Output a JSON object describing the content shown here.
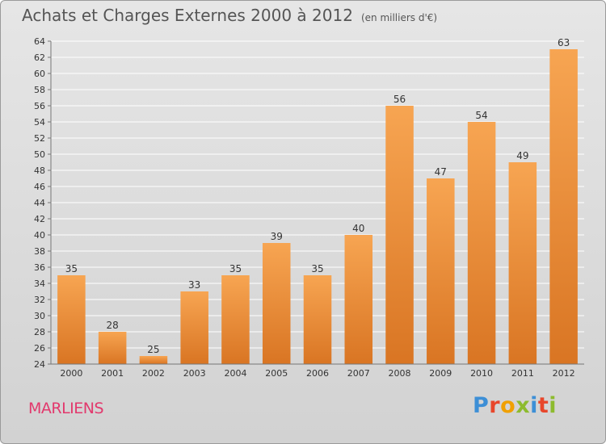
{
  "header": {
    "title": "Achats et Charges Externes 2000 à 2012",
    "subtitle": "(en milliers d'€)"
  },
  "footer": {
    "commune": "MARLIENS",
    "logo_text": "Proxiti"
  },
  "colors": {
    "bar_top": "#f7a552",
    "bar_bottom": "#d97523",
    "grid": "#ffffff",
    "commune": "#e2396d",
    "logo_letters": [
      "#3d8fd6",
      "#e8462b",
      "#f0a000",
      "#8dbb2e",
      "#3d8fd6",
      "#e8462b",
      "#8dbb2e"
    ]
  },
  "chart_data": {
    "type": "bar",
    "title": "Achats et Charges Externes 2000 à 2012",
    "subtitle": "(en milliers d'€)",
    "xlabel": "",
    "ylabel": "",
    "categories": [
      "2000",
      "2001",
      "2002",
      "2003",
      "2004",
      "2005",
      "2006",
      "2007",
      "2008",
      "2009",
      "2010",
      "2011",
      "2012"
    ],
    "values": [
      35,
      28,
      25,
      33,
      35,
      39,
      35,
      40,
      56,
      47,
      54,
      49,
      63
    ],
    "ylim": [
      24,
      64
    ],
    "yticks": [
      24,
      26,
      28,
      30,
      32,
      34,
      36,
      38,
      40,
      42,
      44,
      46,
      48,
      50,
      52,
      54,
      56,
      58,
      60,
      62,
      64
    ],
    "grid": true,
    "data_labels": true
  }
}
